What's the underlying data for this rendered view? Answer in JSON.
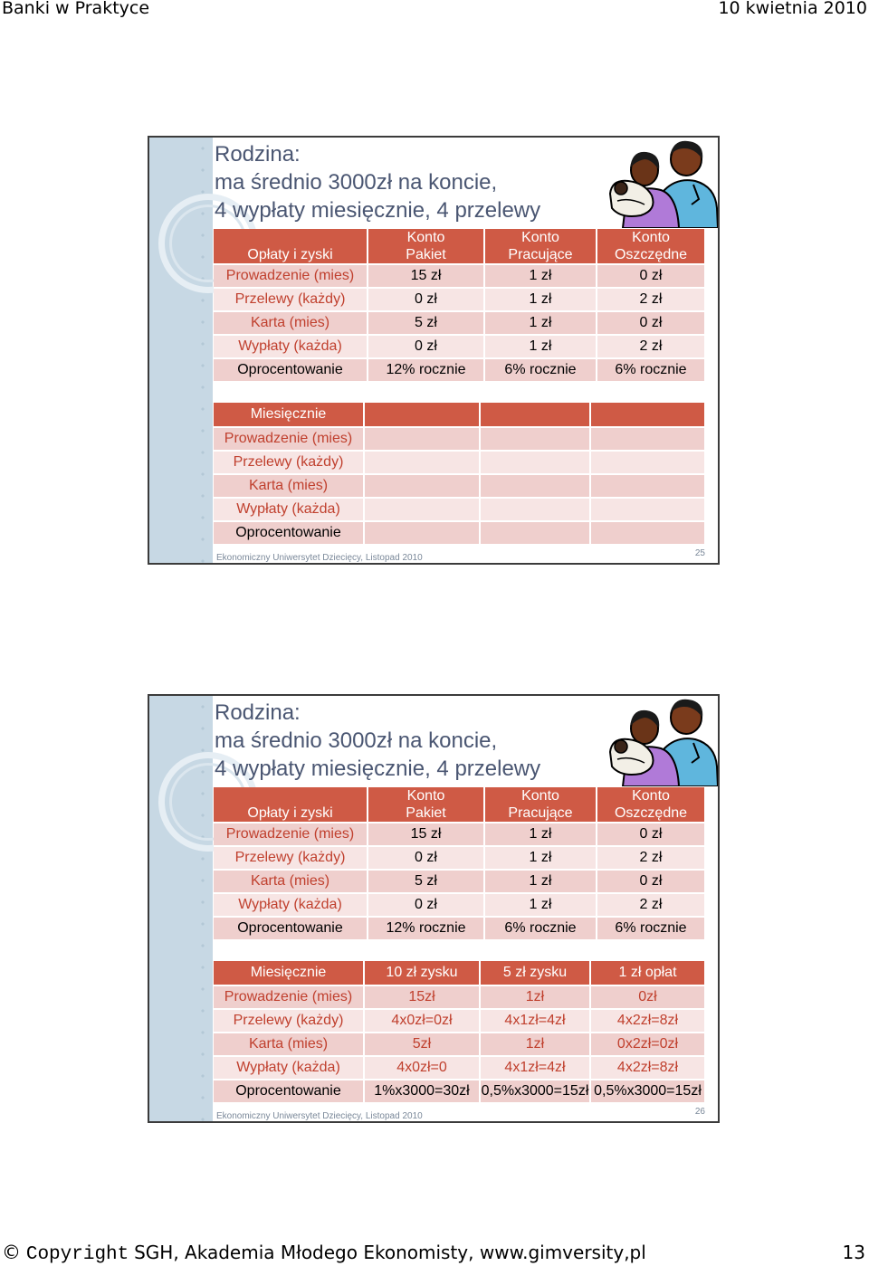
{
  "header": {
    "left": "Banki w Praktyce",
    "right": "10 kwietnia 2010"
  },
  "slides": [
    {
      "title": [
        "Rodzina:",
        "ma średnio 3000zł na koncie,",
        "4 wypłaty miesięcznie, 4 przelewy"
      ],
      "table1": {
        "head": [
          "Opłaty i zyski",
          "Konto\nPakiet",
          "Konto\nPracujące",
          "Konto\nOszczędne"
        ],
        "rows": [
          [
            "Prowadzenie (mies)",
            "15 zł",
            "1 zł",
            "0 zł"
          ],
          [
            "Przelewy (każdy)",
            "0 zł",
            "1 zł",
            "2 zł"
          ],
          [
            "Karta (mies)",
            "5 zł",
            "1 zł",
            "0 zł"
          ],
          [
            "Wypłaty (każda)",
            "0 zł",
            "1 zł",
            "2 zł"
          ],
          [
            "Oprocentowanie",
            "12% rocznie",
            "6% rocznie",
            "6% rocznie"
          ]
        ]
      },
      "table2": {
        "head": [
          "Miesięcznie",
          "",
          "",
          ""
        ],
        "rows": [
          [
            "Prowadzenie (mies)",
            "",
            "",
            ""
          ],
          [
            "Przelewy (każdy)",
            "",
            "",
            ""
          ],
          [
            "Karta (mies)",
            "",
            "",
            ""
          ],
          [
            "Wypłaty (każda)",
            "",
            "",
            ""
          ],
          [
            "Oprocentowanie",
            "",
            "",
            ""
          ]
        ]
      },
      "footer": "Ekonomiczny Uniwersytet Dziecięcy, Listopad 2010",
      "page": "25"
    },
    {
      "title": [
        "Rodzina:",
        "ma średnio 3000zł na koncie,",
        "4 wypłaty miesięcznie, 4 przelewy"
      ],
      "table1": {
        "head": [
          "Opłaty i zyski",
          "Konto\nPakiet",
          "Konto\nPracujące",
          "Konto\nOszczędne"
        ],
        "rows": [
          [
            "Prowadzenie (mies)",
            "15 zł",
            "1 zł",
            "0 zł"
          ],
          [
            "Przelewy (każdy)",
            "0 zł",
            "1 zł",
            "2 zł"
          ],
          [
            "Karta (mies)",
            "5 zł",
            "1 zł",
            "0 zł"
          ],
          [
            "Wypłaty (każda)",
            "0 zł",
            "1 zł",
            "2 zł"
          ],
          [
            "Oprocentowanie",
            "12% rocznie",
            "6% rocznie",
            "6% rocznie"
          ]
        ]
      },
      "table2": {
        "head": [
          "Miesięcznie",
          "10 zł zysku",
          "5 zł zysku",
          "1 zł opłat"
        ],
        "rows": [
          [
            "Prowadzenie (mies)",
            "15zł",
            "1zł",
            "0zł"
          ],
          [
            "Przelewy (każdy)",
            "4x0zł=0zł",
            "4x1zł=4zł",
            "4x2zł=8zł"
          ],
          [
            "Karta (mies)",
            "5zł",
            "1zł",
            "0x2zł=0zł"
          ],
          [
            "Wypłaty (każda)",
            "4x0zł=0",
            "4x1zł=4zł",
            "4x2zł=8zł"
          ],
          [
            "Oprocentowanie",
            "1%x3000=30zł",
            "0,5%x3000=15zł",
            "0,5%x3000=15zł"
          ]
        ]
      },
      "footer": "Ekonomiczny Uniwersytet Dziecięcy, Listopad 2010",
      "page": "26"
    }
  ],
  "page_footer": {
    "symbol": "©",
    "copyright_word": "Copyright",
    "text": "SGH, Akademia Młodego Ekonomisty, www.gimversity,pl",
    "page": "13"
  },
  "colors": {
    "table_header": "#cf5a45",
    "row_dark": "#efcfcd",
    "row_light": "#f7e5e4",
    "label_text": "#c0402e",
    "title_text": "#4a5672",
    "side_band": "#c7d8e4"
  }
}
